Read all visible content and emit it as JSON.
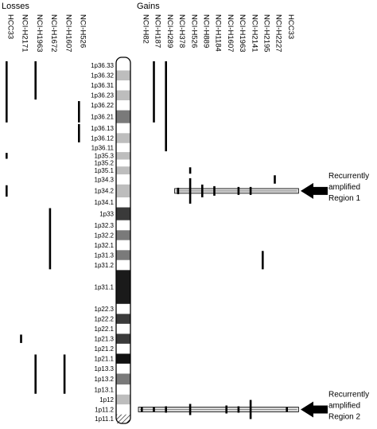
{
  "headers": {
    "losses": "Losses",
    "gains": "Gains"
  },
  "loss_lines": [
    "HCC33",
    "NCI-H2171",
    "NCI-H1963",
    "NCI-H1672",
    "NCI-H1607",
    "NCI-H526"
  ],
  "gain_lines": [
    "NCI-H82",
    "NCI-H187",
    "NCI-H289",
    "NCI-H378",
    "NCI-H526",
    "NCI-H889",
    "NCI-H1184",
    "NCI-H1607",
    "NCI-H1963",
    "NCI-H2141",
    "NCI-H2195",
    "NCI-H2227",
    "HCC33"
  ],
  "bands": [
    {
      "label": "1p36.33",
      "shade": "#ffffff"
    },
    {
      "label": "1p36.32",
      "shade": "#bdbdbd"
    },
    {
      "label": "1p36.31",
      "shade": "#ffffff"
    },
    {
      "label": "1p36.23",
      "shade": "#bdbdbd"
    },
    {
      "label": "1p36.22",
      "shade": "#ffffff"
    },
    {
      "label": "1p36.21",
      "shade": "#7a7a7a"
    },
    {
      "label": "1p36.13",
      "shade": "#ffffff"
    },
    {
      "label": "1p36.12",
      "shade": "#bdbdbd"
    },
    {
      "label": "1p36.11",
      "shade": "#ffffff"
    },
    {
      "label": "1p35.3",
      "shade": "#bdbdbd"
    },
    {
      "label": "1p35.2",
      "shade": "#ffffff"
    },
    {
      "label": "1p35.1",
      "shade": "#bdbdbd"
    },
    {
      "label": "1p34.3",
      "shade": "#ffffff"
    },
    {
      "label": "1p34.2",
      "shade": "#bdbdbd"
    },
    {
      "label": "1p34.1",
      "shade": "#ffffff"
    },
    {
      "label": "1p33",
      "shade": "#3a3a3a"
    },
    {
      "label": "1p32.3",
      "shade": "#ffffff"
    },
    {
      "label": "1p32.2",
      "shade": "#7a7a7a"
    },
    {
      "label": "1p32.1",
      "shade": "#ffffff"
    },
    {
      "label": "1p31.3",
      "shade": "#7a7a7a"
    },
    {
      "label": "1p31.2",
      "shade": "#ffffff"
    },
    {
      "label": "1p31.1",
      "shade": "#1a1a1a"
    },
    {
      "label": "1p22.3",
      "shade": "#ffffff"
    },
    {
      "label": "1p22.2",
      "shade": "#3a3a3a"
    },
    {
      "label": "1p22.1",
      "shade": "#ffffff"
    },
    {
      "label": "1p21.3",
      "shade": "#3a3a3a"
    },
    {
      "label": "1p21.2",
      "shade": "#ffffff"
    },
    {
      "label": "1p21.1",
      "shade": "#111111"
    },
    {
      "label": "1p13.3",
      "shade": "#ffffff"
    },
    {
      "label": "1p13.2",
      "shade": "#7a7a7a"
    },
    {
      "label": "1p13.1",
      "shade": "#ffffff"
    },
    {
      "label": "1p12",
      "shade": "#bdbdbd"
    },
    {
      "label": "1p11.2",
      "shade": "#ffffff"
    },
    {
      "label": "1p11.1",
      "shade": "centromere"
    }
  ],
  "loss_segments": [
    {
      "line": "HCC33",
      "from": "1p36.33",
      "to": "1p36.21"
    },
    {
      "line": "HCC33",
      "from": "1p35.3",
      "to": "1p35.3"
    },
    {
      "line": "HCC33",
      "from": "1p34.2",
      "to": "1p34.2"
    },
    {
      "line": "NCI-H1963",
      "from": "1p36.33",
      "to": "1p36.23"
    },
    {
      "line": "NCI-H526",
      "from": "1p36.22",
      "to": "1p36.21"
    },
    {
      "line": "NCI-H526",
      "from": "1p36.13",
      "to": "1p36.12"
    },
    {
      "line": "NCI-H1672",
      "from": "1p33",
      "to": "1p31.2"
    },
    {
      "line": "NCI-H2171",
      "from": "1p21.3",
      "to": "1p21.3"
    },
    {
      "line": "NCI-H1963",
      "from": "1p21.1",
      "to": "1p13.1"
    },
    {
      "line": "NCI-H1607",
      "from": "1p21.1",
      "to": "1p13.1"
    }
  ],
  "gain_segments": [
    {
      "line": "NCI-H187",
      "from": "1p36.33",
      "to": "1p36.21"
    },
    {
      "line": "NCI-H289",
      "from": "1p36.33",
      "to": "1p36.11"
    },
    {
      "line": "NCI-H526",
      "from": "1p35.1",
      "to": "1p35.1"
    },
    {
      "line": "NCI-H2227",
      "from": "1p34.3",
      "to": "1p34.3"
    },
    {
      "line": "NCI-H2195",
      "from": "1p31.3",
      "to": "1p31.2"
    }
  ],
  "regions": [
    {
      "label_lines": [
        "Recurrently",
        "amplified",
        "Region 1"
      ],
      "band": "1p34.2",
      "from_line": "NCI-H378",
      "to_line": "HCC33",
      "ticks": [
        {
          "line": "NCI-H378",
          "reach": 4
        },
        {
          "line": "NCI-H526",
          "reach": 16
        },
        {
          "line": "NCI-H889",
          "reach": 8
        },
        {
          "line": "NCI-H1184",
          "reach": 6
        },
        {
          "line": "NCI-H1963",
          "reach": 5
        },
        {
          "line": "NCI-H2141",
          "reach": 5
        }
      ]
    },
    {
      "label_lines": [
        "Recurrently",
        "amplified",
        "Region 2"
      ],
      "band": "1p11.2",
      "from_line": "NCI-H82",
      "to_line": "HCC33",
      "ticks": [
        {
          "line": "NCI-H82",
          "reach": 3
        },
        {
          "line": "NCI-H187",
          "reach": 3
        },
        {
          "line": "NCI-H289",
          "reach": 4
        },
        {
          "line": "NCI-H526",
          "reach": 7
        },
        {
          "line": "NCI-H1607",
          "reach": 5
        },
        {
          "line": "NCI-H1963",
          "reach": 4
        },
        {
          "line": "NCI-H2141",
          "reach": 12
        },
        {
          "line": "HCC33",
          "reach": 3
        }
      ]
    }
  ]
}
